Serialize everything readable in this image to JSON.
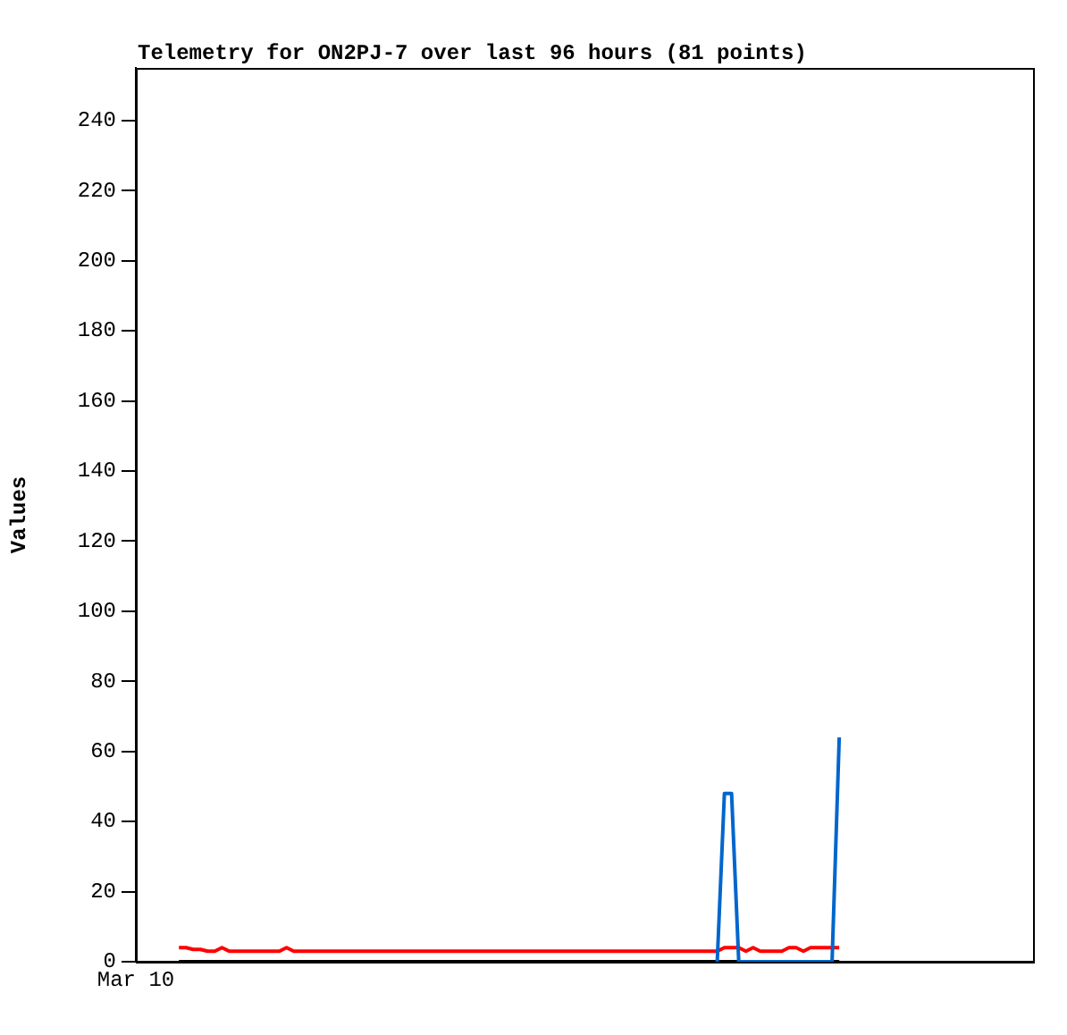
{
  "chart_data": {
    "type": "line",
    "title": "Telemetry for ON2PJ-7 over last 96 hours (81 points)",
    "ylabel": "Values",
    "categories": [
      "Mar 10",
      null,
      null,
      null,
      null,
      null,
      null,
      null,
      null,
      null,
      null,
      null,
      null,
      null,
      null,
      null,
      null,
      null,
      null,
      null,
      null,
      null,
      null,
      null,
      null,
      null,
      null,
      null,
      null,
      null,
      null,
      null,
      null,
      null,
      null,
      null,
      null,
      null,
      null,
      null,
      null,
      null,
      null,
      null,
      null,
      null,
      null,
      null,
      null,
      null,
      null,
      null,
      null,
      null,
      null,
      null,
      null,
      null,
      null,
      null,
      null,
      null,
      null,
      null,
      null,
      null,
      null,
      null,
      null,
      null,
      null,
      null,
      null,
      null,
      null,
      null,
      null,
      null,
      null,
      null,
      null,
      null,
      null,
      null,
      null,
      null,
      null,
      null,
      null,
      null,
      null,
      null,
      null,
      null,
      null,
      null,
      null,
      null,
      null,
      null,
      null,
      null,
      null,
      null,
      null,
      null,
      null,
      null,
      null,
      null,
      null,
      null,
      null,
      null,
      null,
      null,
      null,
      null,
      null,
      null,
      null,
      null,
      null,
      null,
      null,
      null
    ],
    "ylim": [
      0,
      255
    ],
    "yticks": [
      0,
      20,
      40,
      60,
      80,
      100,
      120,
      140,
      160,
      180,
      200,
      220,
      240
    ],
    "grid": false,
    "legend": false,
    "marker": "none",
    "line_style": "solid",
    "series": [
      {
        "color": "#0066cc",
        "values": [
          null,
          null,
          null,
          null,
          null,
          null,
          null,
          null,
          null,
          null,
          null,
          null,
          null,
          null,
          null,
          null,
          null,
          null,
          null,
          null,
          null,
          null,
          null,
          null,
          null,
          null,
          null,
          null,
          null,
          null,
          null,
          null,
          null,
          null,
          null,
          null,
          null,
          null,
          null,
          null,
          null,
          null,
          null,
          null,
          null,
          null,
          null,
          null,
          null,
          null,
          null,
          null,
          null,
          null,
          null,
          null,
          null,
          null,
          null,
          null,
          null,
          null,
          null,
          null,
          null,
          null,
          null,
          null,
          null,
          null,
          null,
          null,
          null,
          null,
          null,
          null,
          null,
          null,
          null,
          null,
          null,
          0,
          48,
          48,
          0,
          0,
          0,
          0,
          0,
          0,
          0,
          0,
          0,
          0,
          0,
          0,
          0,
          0,
          64,
          null,
          null,
          null,
          null,
          null,
          null,
          null,
          null,
          null,
          null,
          null,
          null,
          null,
          null,
          null,
          null,
          null,
          null,
          null,
          null,
          null,
          null,
          null,
          null,
          null,
          null,
          null
        ]
      },
      {
        "color": "#000000",
        "values": [
          null,
          null,
          null,
          null,
          null,
          null,
          0,
          0,
          0,
          0,
          0,
          0,
          0,
          0,
          0,
          0,
          0,
          0,
          0,
          0,
          0,
          0,
          0,
          0,
          0,
          0,
          0,
          0,
          0,
          0,
          0,
          0,
          0,
          0,
          0,
          0,
          0,
          0,
          0,
          0,
          0,
          0,
          0,
          0,
          0,
          0,
          0,
          0,
          0,
          0,
          0,
          0,
          0,
          0,
          0,
          0,
          0,
          0,
          0,
          0,
          0,
          0,
          0,
          0,
          0,
          0,
          0,
          0,
          0,
          0,
          0,
          0,
          0,
          0,
          0,
          0,
          0,
          0,
          0,
          0,
          0,
          0,
          0,
          0,
          0,
          0,
          0,
          0,
          0,
          0,
          0,
          0,
          0,
          0,
          0,
          0,
          0,
          0,
          0,
          null,
          null,
          null,
          null,
          null,
          null,
          null,
          null,
          null,
          null,
          null,
          null,
          null,
          null,
          null,
          null,
          null,
          null,
          null,
          null,
          null,
          null,
          null,
          null,
          null,
          null,
          null
        ]
      },
      {
        "color": "#ff0000",
        "values": [
          null,
          null,
          null,
          null,
          null,
          null,
          4,
          4,
          3.5,
          3.5,
          3,
          3,
          4,
          3,
          3,
          3,
          3,
          3,
          3,
          3,
          3,
          4,
          3,
          3,
          3,
          3,
          3,
          3,
          3,
          3,
          3,
          3,
          3,
          3,
          3,
          3,
          3,
          3,
          3,
          3,
          3,
          3,
          3,
          3,
          3,
          3,
          3,
          3,
          3,
          3,
          3,
          3,
          3,
          3,
          3,
          3,
          3,
          3,
          3,
          3,
          3,
          3,
          3,
          3,
          3,
          3,
          3,
          3,
          3,
          3,
          3,
          3,
          3,
          3,
          3,
          3,
          3,
          3,
          3,
          3,
          3,
          3,
          4,
          4,
          4,
          3,
          4,
          3,
          3,
          3,
          3,
          4,
          4,
          3,
          4,
          4,
          4,
          4,
          4,
          null,
          null,
          null,
          null,
          null,
          null,
          null,
          null,
          null,
          null,
          null,
          null,
          null,
          null,
          null,
          null,
          null,
          null,
          null,
          null,
          null,
          null,
          null,
          null,
          null,
          null,
          null
        ]
      }
    ]
  }
}
